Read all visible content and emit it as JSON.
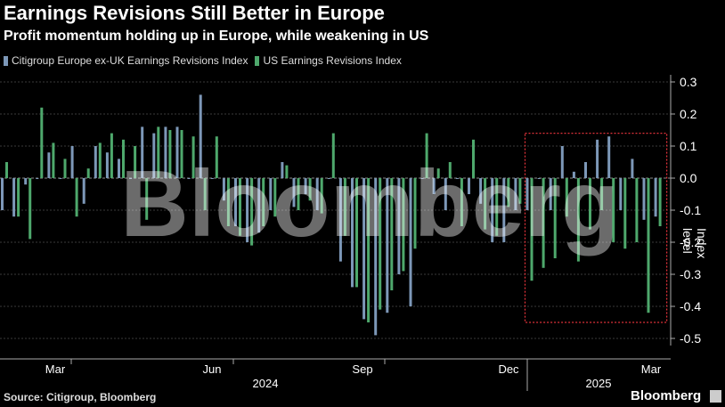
{
  "title": "Earnings Revisions Still Better in Europe",
  "subtitle": "Profit momentum holding up in Europe, while weakening in US",
  "source": "Source: Citigroup, Bloomberg",
  "brand": "Bloomberg",
  "watermark": "Bloomberg",
  "colors": {
    "europe": "#7d98b8",
    "us": "#4ea86c",
    "highlight": "#e0323a",
    "grid": "#3a3a3a"
  },
  "chart_data": {
    "type": "bar",
    "ylabel": "Index level",
    "ylim": [
      -0.5,
      0.3
    ],
    "yticks": [
      0.3,
      0.2,
      0.1,
      0.0,
      -0.1,
      -0.2,
      -0.3,
      -0.4,
      -0.5
    ],
    "ytick_labels": [
      "0.3",
      "0.2",
      "0.1",
      "0.0",
      "-0.1",
      "-0.2",
      "-0.3",
      "-0.4",
      "-0.5"
    ],
    "month_labels": [
      "Mar",
      "Jun",
      "Sep",
      "Dec",
      "Mar"
    ],
    "year_labels": [
      "2024",
      "2025"
    ],
    "highlight_box": {
      "x_start_index": 45,
      "x_end_index": 56,
      "y_top": 0.14,
      "y_bottom": -0.45
    },
    "series": [
      {
        "name": "Citigroup Europe ex-UK Earnings Revisions Index",
        "values": [
          -0.1,
          -0.12,
          -0.02,
          0.0,
          0.08,
          0.0,
          0.1,
          -0.08,
          0.1,
          0.08,
          0.06,
          0.0,
          0.16,
          0.14,
          0.16,
          0.16,
          0.0,
          0.26,
          0.0,
          -0.07,
          -0.15,
          -0.2,
          -0.17,
          -0.1,
          0.05,
          -0.09,
          -0.05,
          -0.1,
          0.0,
          -0.26,
          -0.34,
          -0.44,
          -0.49,
          -0.42,
          -0.3,
          -0.4,
          0.0,
          -0.05,
          -0.1,
          0.0,
          -0.05,
          -0.08,
          -0.2,
          -0.2,
          -0.1,
          -0.1,
          0.0,
          -0.1,
          0.1,
          0.02,
          0.05,
          0.12,
          0.13,
          -0.1,
          0.06,
          -0.13,
          -0.12
        ]
      },
      {
        "name": "US Earnings Revisions Index",
        "values": [
          0.05,
          -0.12,
          -0.19,
          0.22,
          0.11,
          0.06,
          -0.12,
          0.03,
          0.11,
          0.14,
          0.12,
          0.1,
          -0.13,
          0.16,
          0.15,
          0.15,
          0.13,
          -0.1,
          0.13,
          -0.15,
          -0.18,
          -0.21,
          -0.15,
          -0.12,
          0.04,
          -0.1,
          -0.07,
          -0.11,
          0.14,
          -0.18,
          -0.34,
          -0.45,
          -0.41,
          -0.35,
          -0.29,
          -0.22,
          0.14,
          0.03,
          0.05,
          -0.15,
          0.12,
          -0.16,
          -0.18,
          -0.09,
          -0.08,
          -0.32,
          -0.28,
          -0.25,
          -0.12,
          -0.26,
          -0.16,
          -0.1,
          -0.2,
          -0.22,
          -0.2,
          -0.42,
          -0.15
        ]
      }
    ]
  }
}
